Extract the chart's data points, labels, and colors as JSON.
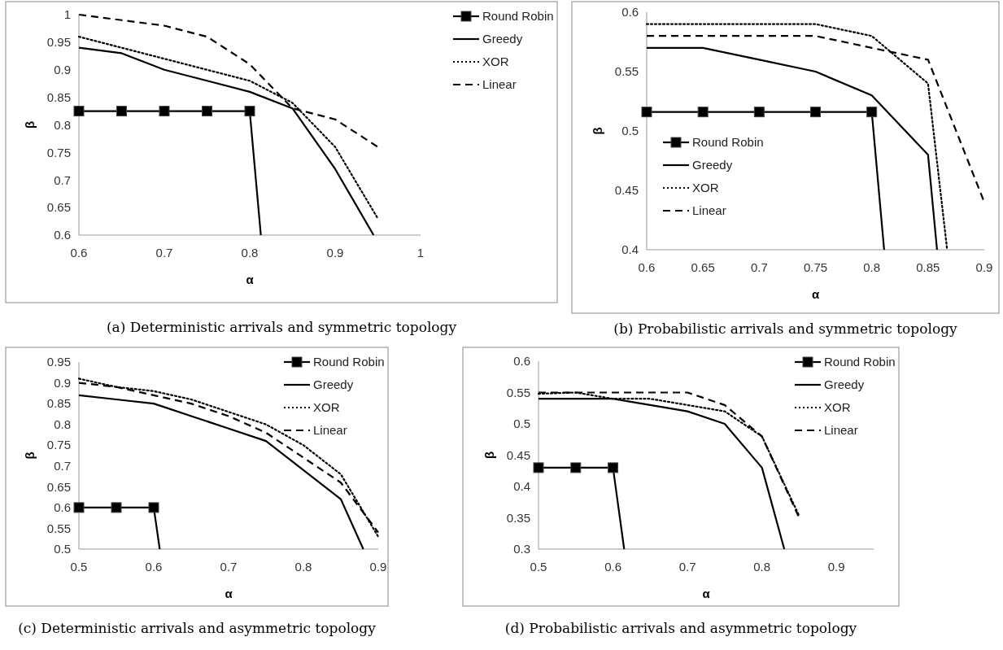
{
  "chart_data": [
    {
      "type": "line",
      "title": "(a) Deterministic arrivals and symmetric topology",
      "xlabel": "α",
      "ylabel": "β",
      "xlim": [
        0.6,
        1
      ],
      "xticks": [
        0.6,
        0.7,
        0.8,
        0.9,
        1
      ],
      "ylim": [
        0.6,
        1
      ],
      "yticks": [
        0.6,
        0.65,
        0.7,
        0.75,
        0.8,
        0.85,
        0.9,
        0.95,
        1
      ],
      "legend": "top right",
      "grid": false,
      "series": [
        {
          "name": "Round Robin",
          "color": "#000000",
          "marker": "square",
          "line_style": "solid",
          "x": [
            0.6,
            0.65,
            0.7,
            0.75,
            0.8,
            0.813
          ],
          "values": [
            0.825,
            0.825,
            0.825,
            0.825,
            0.825,
            0.6
          ]
        },
        {
          "name": "Greedy",
          "color": "#000000",
          "marker": "none",
          "line_style": "solid",
          "x": [
            0.6,
            0.65,
            0.7,
            0.75,
            0.8,
            0.85,
            0.9,
            0.945
          ],
          "values": [
            0.94,
            0.93,
            0.9,
            0.88,
            0.86,
            0.83,
            0.72,
            0.6
          ]
        },
        {
          "name": "XOR",
          "color": "#000000",
          "marker": "none",
          "line_style": "dotted",
          "x": [
            0.6,
            0.65,
            0.7,
            0.75,
            0.8,
            0.85,
            0.9,
            0.95
          ],
          "values": [
            0.96,
            0.94,
            0.92,
            0.9,
            0.88,
            0.84,
            0.76,
            0.63
          ]
        },
        {
          "name": "Linear",
          "color": "#000000",
          "marker": "none",
          "line_style": "dashed",
          "x": [
            0.6,
            0.65,
            0.7,
            0.75,
            0.8,
            0.85,
            0.9,
            0.95
          ],
          "values": [
            1,
            0.99,
            0.98,
            0.96,
            0.91,
            0.83,
            0.81,
            0.76
          ]
        }
      ]
    },
    {
      "type": "line",
      "title": "(b) Probabilistic arrivals and symmetric topology",
      "xlabel": "α",
      "ylabel": "β",
      "xlim": [
        0.6,
        0.9
      ],
      "xticks": [
        0.6,
        0.65,
        0.7,
        0.75,
        0.8,
        0.85,
        0.9
      ],
      "ylim": [
        0.4,
        0.6
      ],
      "yticks": [
        0.4,
        0.45,
        0.5,
        0.55,
        0.6
      ],
      "legend": "center left",
      "grid": false,
      "series": [
        {
          "name": "Round Robin",
          "color": "#000000",
          "marker": "square",
          "line_style": "solid",
          "x": [
            0.6,
            0.65,
            0.7,
            0.75,
            0.8,
            0.811
          ],
          "values": [
            0.516,
            0.516,
            0.516,
            0.516,
            0.516,
            0.4
          ]
        },
        {
          "name": "Greedy",
          "color": "#000000",
          "marker": "none",
          "line_style": "solid",
          "x": [
            0.6,
            0.65,
            0.7,
            0.75,
            0.8,
            0.85,
            0.858
          ],
          "values": [
            0.57,
            0.57,
            0.56,
            0.55,
            0.53,
            0.48,
            0.4
          ]
        },
        {
          "name": "XOR",
          "color": "#000000",
          "marker": "none",
          "line_style": "dotted",
          "x": [
            0.6,
            0.65,
            0.7,
            0.75,
            0.8,
            0.85,
            0.867
          ],
          "values": [
            0.59,
            0.59,
            0.59,
            0.59,
            0.58,
            0.54,
            0.4
          ]
        },
        {
          "name": "Linear",
          "color": "#000000",
          "marker": "none",
          "line_style": "dashed",
          "x": [
            0.6,
            0.65,
            0.7,
            0.75,
            0.8,
            0.85,
            0.9
          ],
          "values": [
            0.58,
            0.58,
            0.58,
            0.58,
            0.57,
            0.56,
            0.44
          ]
        }
      ]
    },
    {
      "type": "line",
      "title": "(c) Deterministic arrivals and asymmetric topology",
      "xlabel": "α",
      "ylabel": "β",
      "xlim": [
        0.5,
        0.9
      ],
      "xticks": [
        0.5,
        0.6,
        0.7,
        0.8,
        0.9
      ],
      "ylim": [
        0.5,
        0.95
      ],
      "yticks": [
        0.5,
        0.55,
        0.6,
        0.65,
        0.7,
        0.75,
        0.8,
        0.85,
        0.9,
        0.95
      ],
      "legend": "top right",
      "grid": false,
      "series": [
        {
          "name": "Round Robin",
          "color": "#000000",
          "marker": "square",
          "line_style": "solid",
          "x": [
            0.5,
            0.55,
            0.6,
            0.608
          ],
          "values": [
            0.6,
            0.6,
            0.6,
            0.5
          ]
        },
        {
          "name": "Greedy",
          "color": "#000000",
          "marker": "none",
          "line_style": "solid",
          "x": [
            0.5,
            0.55,
            0.6,
            0.65,
            0.7,
            0.75,
            0.8,
            0.85,
            0.88
          ],
          "values": [
            0.87,
            0.86,
            0.85,
            0.82,
            0.79,
            0.76,
            0.69,
            0.62,
            0.5
          ]
        },
        {
          "name": "XOR",
          "color": "#000000",
          "marker": "none",
          "line_style": "dotted",
          "x": [
            0.5,
            0.55,
            0.6,
            0.65,
            0.7,
            0.75,
            0.8,
            0.85,
            0.9
          ],
          "values": [
            0.91,
            0.89,
            0.88,
            0.86,
            0.83,
            0.8,
            0.75,
            0.68,
            0.53
          ]
        },
        {
          "name": "Linear",
          "color": "#000000",
          "marker": "none",
          "line_style": "dashed",
          "x": [
            0.5,
            0.55,
            0.6,
            0.65,
            0.7,
            0.75,
            0.8,
            0.85,
            0.9
          ],
          "values": [
            0.9,
            0.89,
            0.87,
            0.85,
            0.82,
            0.78,
            0.72,
            0.66,
            0.54
          ]
        }
      ]
    },
    {
      "type": "line",
      "title": "(d) Probabilistic arrivals and asymmetric topology",
      "xlabel": "α",
      "ylabel": "β",
      "xlim": [
        0.5,
        0.95
      ],
      "xticks": [
        0.5,
        0.6,
        0.7,
        0.8,
        0.9
      ],
      "ylim": [
        0.3,
        0.6
      ],
      "yticks": [
        0.3,
        0.35,
        0.4,
        0.45,
        0.5,
        0.55,
        0.6
      ],
      "legend": "top right",
      "grid": false,
      "series": [
        {
          "name": "Round Robin",
          "color": "#000000",
          "marker": "square",
          "line_style": "solid",
          "x": [
            0.5,
            0.55,
            0.6,
            0.615
          ],
          "values": [
            0.43,
            0.43,
            0.43,
            0.3
          ]
        },
        {
          "name": "Greedy",
          "color": "#000000",
          "marker": "none",
          "line_style": "solid",
          "x": [
            0.5,
            0.55,
            0.6,
            0.65,
            0.7,
            0.75,
            0.8,
            0.83
          ],
          "values": [
            0.54,
            0.54,
            0.54,
            0.53,
            0.52,
            0.5,
            0.43,
            0.3
          ]
        },
        {
          "name": "XOR",
          "color": "#000000",
          "marker": "none",
          "line_style": "dotted",
          "x": [
            0.5,
            0.55,
            0.6,
            0.65,
            0.7,
            0.75,
            0.8,
            0.85
          ],
          "values": [
            0.548,
            0.55,
            0.54,
            0.54,
            0.53,
            0.52,
            0.48,
            0.353
          ]
        },
        {
          "name": "Linear",
          "color": "#000000",
          "marker": "none",
          "line_style": "dashed",
          "x": [
            0.5,
            0.55,
            0.6,
            0.65,
            0.7,
            0.75,
            0.8,
            0.85
          ],
          "values": [
            0.55,
            0.55,
            0.55,
            0.55,
            0.55,
            0.53,
            0.48,
            0.35
          ]
        }
      ]
    }
  ]
}
